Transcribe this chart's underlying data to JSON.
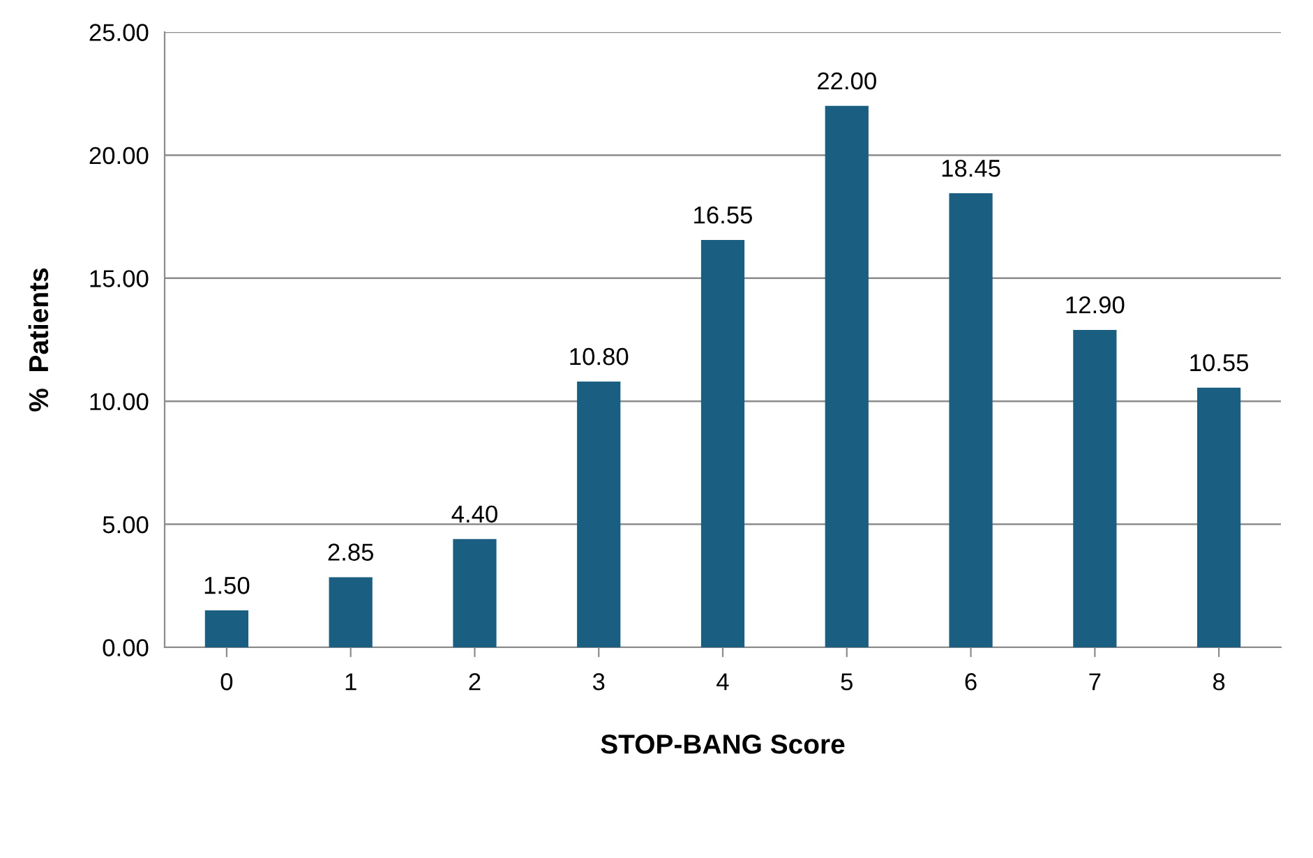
{
  "chart_data": {
    "type": "bar",
    "categories": [
      "0",
      "1",
      "2",
      "3",
      "4",
      "5",
      "6",
      "7",
      "8"
    ],
    "values": [
      1.5,
      2.85,
      4.4,
      10.8,
      16.55,
      22.0,
      18.45,
      12.9,
      10.55
    ],
    "value_labels": [
      "1.50",
      "2.85",
      "4.40",
      "10.80",
      "16.55",
      "22.00",
      "18.45",
      "12.90",
      "10.55"
    ],
    "color": "#1a5f82",
    "xlabel": "STOP-BANG Score",
    "ylabel": "%  Patients",
    "ylim": [
      0,
      25
    ],
    "yticks": [
      {
        "value": 0,
        "label": "0.00"
      },
      {
        "value": 5,
        "label": "5.00"
      },
      {
        "value": 10,
        "label": "10.00"
      },
      {
        "value": 15,
        "label": "15.00"
      },
      {
        "value": 20,
        "label": "20.00"
      },
      {
        "value": 25,
        "label": "25.00"
      }
    ],
    "grid": "y"
  }
}
